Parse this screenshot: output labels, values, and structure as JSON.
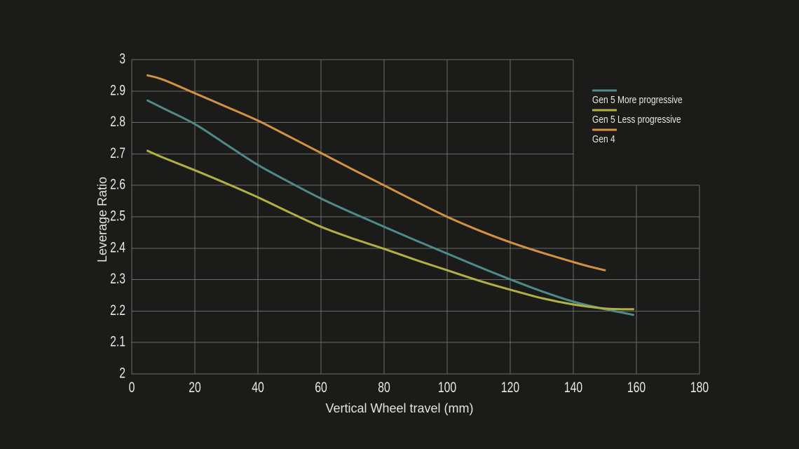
{
  "chart_data": {
    "type": "line",
    "xlabel": "Vertical Wheel travel (mm)",
    "ylabel": "Leverage Ratio",
    "xlim": [
      0,
      180
    ],
    "ylim": [
      2,
      3
    ],
    "x_ticks": [
      0,
      20,
      40,
      60,
      80,
      100,
      120,
      140,
      160,
      180
    ],
    "y_ticks": [
      2,
      2.1,
      2.2,
      2.3,
      2.4,
      2.5,
      2.6,
      2.7,
      2.8,
      2.9,
      3
    ],
    "grid": true,
    "grid_notch": {
      "x": 140,
      "y": 2.6
    },
    "legend_position": "upper-right",
    "series": [
      {
        "name": "Gen 5 More progressive",
        "color": "#4d8b88",
        "points": [
          [
            5,
            2.87
          ],
          [
            10,
            2.845
          ],
          [
            20,
            2.795
          ],
          [
            30,
            2.73
          ],
          [
            40,
            2.665
          ],
          [
            50,
            2.61
          ],
          [
            60,
            2.558
          ],
          [
            70,
            2.512
          ],
          [
            80,
            2.468
          ],
          [
            90,
            2.425
          ],
          [
            100,
            2.383
          ],
          [
            110,
            2.341
          ],
          [
            120,
            2.301
          ],
          [
            130,
            2.263
          ],
          [
            140,
            2.23
          ],
          [
            150,
            2.206
          ],
          [
            155,
            2.196
          ],
          [
            159,
            2.188
          ]
        ]
      },
      {
        "name": "Gen 5 Less progressive",
        "color": "#b1b143",
        "points": [
          [
            5,
            2.71
          ],
          [
            10,
            2.688
          ],
          [
            20,
            2.648
          ],
          [
            30,
            2.606
          ],
          [
            40,
            2.562
          ],
          [
            50,
            2.514
          ],
          [
            60,
            2.468
          ],
          [
            70,
            2.431
          ],
          [
            80,
            2.398
          ],
          [
            90,
            2.363
          ],
          [
            100,
            2.33
          ],
          [
            110,
            2.297
          ],
          [
            120,
            2.268
          ],
          [
            130,
            2.241
          ],
          [
            140,
            2.221
          ],
          [
            150,
            2.208
          ],
          [
            155,
            2.206
          ],
          [
            159,
            2.206
          ]
        ]
      },
      {
        "name": "Gen 4",
        "color": "#d29241",
        "points": [
          [
            5,
            2.95
          ],
          [
            10,
            2.936
          ],
          [
            20,
            2.893
          ],
          [
            30,
            2.85
          ],
          [
            40,
            2.806
          ],
          [
            50,
            2.755
          ],
          [
            60,
            2.703
          ],
          [
            70,
            2.651
          ],
          [
            80,
            2.6
          ],
          [
            90,
            2.549
          ],
          [
            100,
            2.5
          ],
          [
            110,
            2.457
          ],
          [
            120,
            2.419
          ],
          [
            130,
            2.386
          ],
          [
            140,
            2.356
          ],
          [
            145,
            2.342
          ],
          [
            150,
            2.33
          ]
        ]
      }
    ],
    "colors": {
      "background": "#1b1b19",
      "grid": "#6b6b6b",
      "text": "#e8e8e6"
    }
  }
}
